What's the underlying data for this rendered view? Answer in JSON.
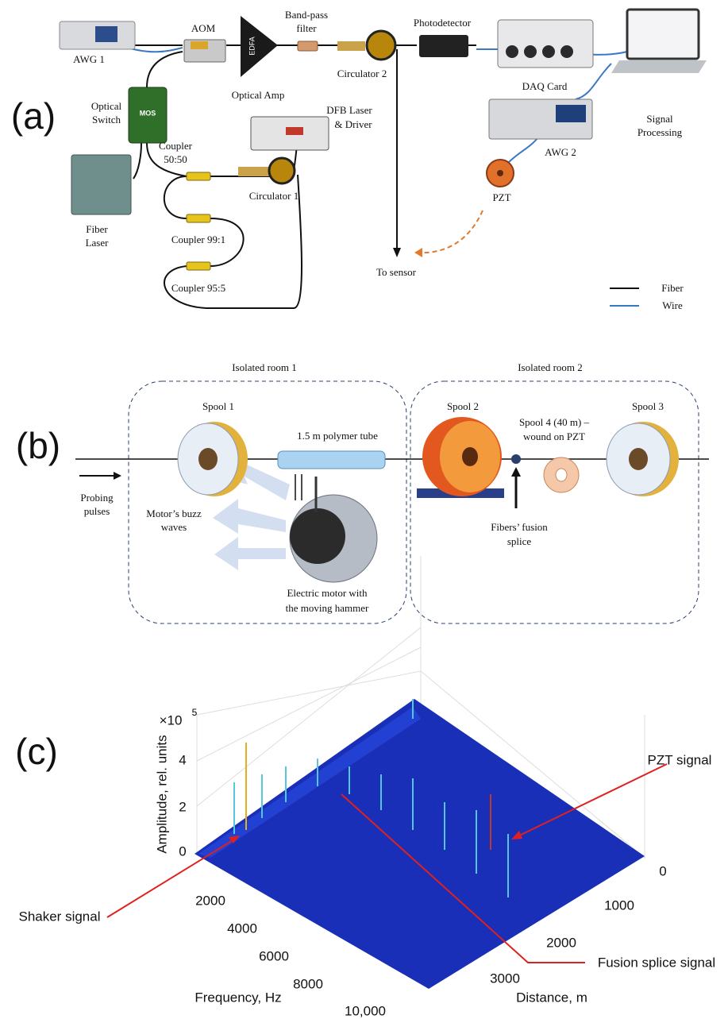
{
  "panel_a": {
    "label": "(a)",
    "awg1": "AWG 1",
    "aom": "AOM",
    "edfa": "EDFA",
    "optical_amp": "Optical Amp",
    "band_pass_filter": [
      "Band-pass",
      "filter"
    ],
    "circulator2": "Circulator 2",
    "photodetector": "Photodetector",
    "daq_card": "DAQ Card",
    "signal_processing": [
      "Signal",
      "Processing"
    ],
    "optical_switch": [
      "Optical",
      "Switch"
    ],
    "mos": "MOS",
    "dfb_laser": [
      "DFB Laser",
      "& Driver"
    ],
    "coupler_50_50": [
      "Coupler",
      "50:50"
    ],
    "circulator1": "Circulator 1",
    "fiber_laser": [
      "Fiber",
      "Laser"
    ],
    "coupler_99_1": "Coupler 99:1",
    "coupler_95_5": "Coupler 95:5",
    "to_sensor": "To sensor",
    "awg2": "AWG 2",
    "pzt": "PZT",
    "legend": [
      "Fiber",
      "Wire"
    ]
  },
  "panel_b": {
    "label": "(b)",
    "room1": "Isolated room 1",
    "room2": "Isolated room 2",
    "spool1": "Spool 1",
    "tube": "1.5 m polymer tube",
    "spool2": "Spool 2",
    "spool4": [
      "Spool 4 (40 m) –",
      "wound on PZT"
    ],
    "spool3": "Spool 3",
    "probing_pulses": [
      "Probing",
      "pulses"
    ],
    "buzz_waves": [
      "Motor’s buzz",
      "waves"
    ],
    "motor": [
      "Electric motor with",
      "the moving hammer"
    ],
    "splice": [
      "Fibers’ fusion",
      "splice"
    ]
  },
  "panel_c": {
    "label": "(c)",
    "multiplier": "×10",
    "exponent": "5",
    "z_axis_label": "Amplitude, rel. units",
    "z_ticks": [
      "0",
      "2",
      "4"
    ],
    "frequency_ticks": [
      "2000",
      "4000",
      "6000",
      "8000",
      "10,000"
    ],
    "frequency_label": "Frequency, Hz",
    "distance_ticks": [
      "0",
      "1000",
      "2000",
      "3000"
    ],
    "distance_label": "Distance, m",
    "annotations": [
      "Shaker signal",
      "PZT signal",
      "Fusion splice signal"
    ]
  }
}
